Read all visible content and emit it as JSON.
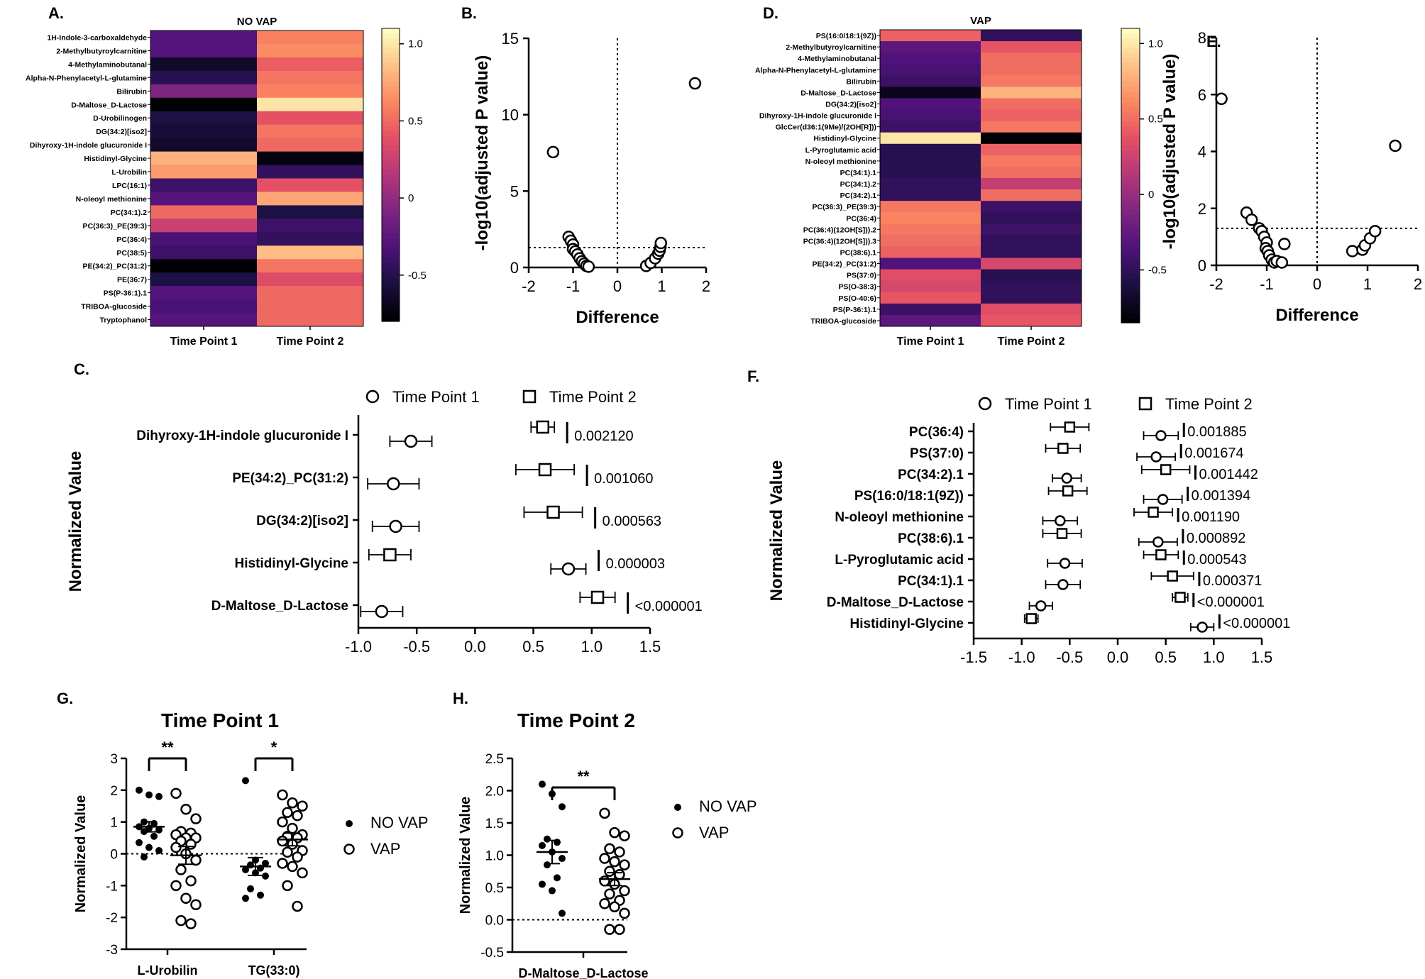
{
  "figure": {
    "panel_labels": [
      "A.",
      "B.",
      "C.",
      "D.",
      "E.",
      "F.",
      "G.",
      "H."
    ]
  },
  "chart_data": [
    {
      "id": "A",
      "type": "heatmap",
      "title": "NO VAP",
      "columns": [
        "Time Point 1",
        "Time Point 2"
      ],
      "rows": [
        "1H-Indole-3-carboxaldehyde",
        "2-Methylbutyroylcarnitine",
        "4-Methylaminobutanal",
        "Alpha-N-Phenylacetyl-L-glutamine",
        "Bilirubin",
        "D-Maltose_D-Lactose",
        "D-Urobilinogen",
        "DG(34:2)[iso2]",
        "Dihyroxy-1H-indole glucuronide I",
        "Histidinyl-Glycine",
        "L-Urobilin",
        "LPC(16:1)",
        "N-oleoyl methionine",
        "PC(34:1).2",
        "PC(36:3)_PE(39:3)",
        "PC(36:4)",
        "PC(38:5)",
        "PE(34:2)_PC(31:2)",
        "PE(36:7)",
        "PS(P-36:1).1",
        "TRIBOA-glucoside",
        "Tryptophanol"
      ],
      "values": [
        [
          -0.3,
          0.6
        ],
        [
          -0.3,
          0.65
        ],
        [
          -0.65,
          0.45
        ],
        [
          -0.5,
          0.55
        ],
        [
          -0.1,
          0.6
        ],
        [
          -0.85,
          1.0
        ],
        [
          -0.55,
          0.4
        ],
        [
          -0.6,
          0.55
        ],
        [
          -0.65,
          0.5
        ],
        [
          0.8,
          -0.75
        ],
        [
          0.7,
          -0.45
        ],
        [
          -0.4,
          0.4
        ],
        [
          -0.3,
          0.75
        ],
        [
          0.5,
          -0.55
        ],
        [
          0.25,
          -0.4
        ],
        [
          -0.35,
          -0.45
        ],
        [
          -0.4,
          0.85
        ],
        [
          -0.8,
          0.55
        ],
        [
          -0.55,
          0.35
        ],
        [
          -0.3,
          0.5
        ],
        [
          -0.35,
          0.5
        ],
        [
          -0.3,
          0.5
        ]
      ],
      "colorbar_ticks": [
        "1.0",
        "0.5",
        "0",
        "-0.5"
      ],
      "colorbar_range": [
        -0.8,
        1.1
      ]
    },
    {
      "id": "B",
      "type": "scatter",
      "xlabel": "Difference",
      "ylabel": "-log10(adjusted P value)",
      "xlim": [
        -2,
        2
      ],
      "ylim": [
        0,
        15
      ],
      "xticks": [
        "-2",
        "-1",
        "0",
        "1",
        "2"
      ],
      "yticks": [
        "0",
        "5",
        "10",
        "15"
      ],
      "threshold_y": 1.3,
      "points": [
        [
          1.75,
          12.05
        ],
        [
          -1.45,
          7.55
        ],
        [
          -1.1,
          2.0
        ],
        [
          -1.05,
          1.75
        ],
        [
          -1.0,
          1.5
        ],
        [
          -1.0,
          1.2
        ],
        [
          -0.95,
          1.05
        ],
        [
          -0.9,
          0.85
        ],
        [
          -0.85,
          0.6
        ],
        [
          -0.8,
          0.4
        ],
        [
          -0.75,
          0.25
        ],
        [
          -0.7,
          0.1
        ],
        [
          -0.65,
          0.05
        ],
        [
          0.65,
          0.1
        ],
        [
          0.75,
          0.3
        ],
        [
          0.85,
          0.6
        ],
        [
          0.92,
          0.9
        ],
        [
          0.95,
          1.1
        ],
        [
          0.97,
          1.35
        ],
        [
          0.98,
          1.6
        ]
      ]
    },
    {
      "id": "C",
      "type": "scatter",
      "subtype": "forest",
      "legend": [
        "Time Point 1",
        "Time Point 2"
      ],
      "ylabel": "Normalized Value",
      "xlim": [
        -1.0,
        1.5
      ],
      "xticks": [
        "-1.0",
        "-0.5",
        "0.0",
        "0.5",
        "1.0",
        "1.5"
      ],
      "categories": [
        "Dihyroxy-1H-indole glucuronide I",
        "PE(34:2)_PC(31:2)",
        "DG(34:2)[iso2]",
        "Histidinyl-Glycine",
        "D-Maltose_D-Lactose"
      ],
      "p_values": [
        "0.002120",
        "0.001060",
        "0.000563",
        "0.000003",
        "<0.000001"
      ],
      "tp1": [
        [
          -0.55,
          0.18
        ],
        [
          -0.7,
          0.22
        ],
        [
          -0.68,
          0.2
        ],
        [
          0.8,
          0.15
        ],
        [
          -0.8,
          0.18
        ]
      ],
      "tp2": [
        [
          0.58,
          0.1
        ],
        [
          0.6,
          0.25
        ],
        [
          0.67,
          0.25
        ],
        [
          -0.73,
          0.18
        ],
        [
          1.05,
          0.15
        ]
      ]
    },
    {
      "id": "D",
      "type": "heatmap",
      "title": "VAP",
      "columns": [
        "Time Point 1",
        "Time Point 2"
      ],
      "rows": [
        "PS(16:0/18:1(9Z))",
        "2-Methylbutyroylcarnitine",
        "4-Methylaminobutanal",
        "Alpha-N-Phenylacetyl-L-glutamine",
        "Bilirubin",
        "D-Maltose_D-Lactose",
        "DG(34:2)[iso2]",
        "Dihyroxy-1H-indole glucuronide I",
        "GlcCer(d36:1(9Me)/(2OH[R]))",
        "Histidinyl-Glycine",
        "L-Pyroglutamic acid",
        "N-oleoyl methionine",
        "PC(34:1).1",
        "PC(34:1).2",
        "PC(34:2).1",
        "PC(36:3)_PE(39:3)",
        "PC(36:4)",
        "PC(36:4)(12OH[S])).2",
        "PC(36:4)(12OH[S])).3",
        "PC(38:6).1",
        "PE(34:2)_PC(31:2)",
        "PS(37:0)",
        "PS(O-38:3)",
        "PS(O-40:6)",
        "PS(P-36:1).1",
        "TRIBOA-glucoside"
      ],
      "values": [
        [
          0.45,
          -0.5
        ],
        [
          -0.3,
          0.4
        ],
        [
          -0.35,
          0.5
        ],
        [
          -0.4,
          0.5
        ],
        [
          -0.45,
          0.55
        ],
        [
          -0.75,
          0.8
        ],
        [
          -0.35,
          0.5
        ],
        [
          -0.4,
          0.45
        ],
        [
          -0.45,
          0.55
        ],
        [
          1.0,
          -0.85
        ],
        [
          -0.55,
          0.45
        ],
        [
          -0.55,
          0.55
        ],
        [
          -0.55,
          0.5
        ],
        [
          -0.5,
          0.2
        ],
        [
          -0.5,
          0.5
        ],
        [
          0.55,
          -0.45
        ],
        [
          0.6,
          -0.5
        ],
        [
          0.55,
          -0.45
        ],
        [
          0.5,
          -0.5
        ],
        [
          0.45,
          -0.5
        ],
        [
          -0.35,
          0.3
        ],
        [
          0.35,
          -0.55
        ],
        [
          0.3,
          -0.5
        ],
        [
          0.4,
          -0.5
        ],
        [
          -0.45,
          0.35
        ],
        [
          -0.3,
          0.4
        ]
      ],
      "colorbar_ticks": [
        "1.0",
        "0.5",
        "0",
        "-0.5"
      ],
      "colorbar_range": [
        -0.85,
        1.1
      ]
    },
    {
      "id": "E",
      "type": "scatter",
      "xlabel": "Difference",
      "ylabel": "-log10(adjusted P value)",
      "xlim": [
        -2,
        2
      ],
      "ylim": [
        0,
        8
      ],
      "xticks": [
        "-2",
        "-1",
        "0",
        "1",
        "2"
      ],
      "yticks": [
        "0",
        "2",
        "4",
        "6",
        "8"
      ],
      "threshold_y": 1.3,
      "points": [
        [
          -1.9,
          5.85
        ],
        [
          1.55,
          4.2
        ],
        [
          -1.4,
          1.85
        ],
        [
          -1.3,
          1.6
        ],
        [
          -1.15,
          1.3
        ],
        [
          -1.1,
          1.2
        ],
        [
          -1.05,
          1.0
        ],
        [
          -1.0,
          0.8
        ],
        [
          -1.02,
          0.6
        ],
        [
          -0.98,
          0.5
        ],
        [
          -0.95,
          0.35
        ],
        [
          -0.9,
          0.2
        ],
        [
          -0.85,
          0.1
        ],
        [
          -0.8,
          0.15
        ],
        [
          -0.7,
          0.1
        ],
        [
          -0.65,
          0.75
        ],
        [
          0.7,
          0.5
        ],
        [
          0.9,
          0.55
        ],
        [
          0.95,
          0.7
        ],
        [
          1.05,
          0.95
        ],
        [
          1.15,
          1.2
        ]
      ]
    },
    {
      "id": "F",
      "type": "scatter",
      "subtype": "forest",
      "legend": [
        "Time Point 1",
        "Time Point 2"
      ],
      "ylabel": "Normalized Value",
      "xlim": [
        -1.5,
        1.5
      ],
      "xticks": [
        "-1.5",
        "-1.0",
        "-0.5",
        "0.0",
        "0.5",
        "1.0",
        "1.5"
      ],
      "categories": [
        "PC(36:4)",
        "PS(37:0)",
        "PC(34:2).1",
        "PS(16:0/18:1(9Z))",
        "N-oleoyl methionine",
        "PC(38:6).1",
        "L-Pyroglutamic acid",
        "PC(34:1).1",
        "D-Maltose_D-Lactose",
        "Histidinyl-Glycine"
      ],
      "p_values": [
        "0.001885",
        "0.001674",
        "0.001442",
        "0.001394",
        "0.001190",
        "0.000892",
        "0.000543",
        "0.000371",
        "<0.000001",
        "<0.000001"
      ],
      "tp1": [
        [
          0.45,
          0.18
        ],
        [
          0.4,
          0.2
        ],
        [
          -0.53,
          0.15
        ],
        [
          0.47,
          0.2
        ],
        [
          -0.6,
          0.18
        ],
        [
          0.42,
          0.2
        ],
        [
          -0.55,
          0.18
        ],
        [
          -0.57,
          0.18
        ],
        [
          -0.8,
          0.12
        ],
        [
          0.88,
          0.12
        ]
      ],
      "tp2": [
        [
          -0.5,
          0.2
        ],
        [
          -0.57,
          0.18
        ],
        [
          0.5,
          0.25
        ],
        [
          -0.52,
          0.2
        ],
        [
          0.37,
          0.2
        ],
        [
          -0.58,
          0.2
        ],
        [
          0.45,
          0.18
        ],
        [
          0.57,
          0.22
        ],
        [
          0.65,
          0.08
        ],
        [
          -0.9,
          0.07
        ]
      ]
    },
    {
      "id": "G",
      "type": "scatter",
      "subtype": "dot-plot",
      "title": "Time Point 1",
      "ylabel": "Normalized Value",
      "ylim": [
        -3,
        3
      ],
      "yticks": [
        "3",
        "2",
        "1",
        "0",
        "-1",
        "-2",
        "-3"
      ],
      "categories": [
        "L-Urobilin",
        "TG(33:0)"
      ],
      "legend": [
        "NO VAP",
        "VAP"
      ],
      "significance": [
        "**",
        "*"
      ],
      "series": [
        {
          "name": "NO VAP",
          "group": 0,
          "mean": 0.85,
          "sem": 0.16,
          "values": [
            2.0,
            1.85,
            1.8,
            1.0,
            0.95,
            0.85,
            0.8,
            0.75,
            0.7,
            0.55,
            0.35,
            0.2,
            0.1,
            -0.1
          ]
        },
        {
          "name": "VAP",
          "group": 0,
          "mean": -0.05,
          "sem": 0.28,
          "values": [
            1.9,
            1.4,
            1.1,
            0.7,
            0.65,
            0.6,
            0.5,
            0.5,
            0.4,
            0.3,
            0.2,
            0.0,
            -0.2,
            -0.5,
            -0.85,
            -1.0,
            -1.4,
            -1.6,
            -2.1,
            -2.2
          ]
        },
        {
          "name": "NO VAP",
          "group": 1,
          "mean": -0.4,
          "sem": 0.28,
          "values": [
            2.3,
            -0.2,
            -0.3,
            -0.35,
            -0.45,
            -0.5,
            -0.6,
            -0.7,
            -1.1,
            -1.3,
            -1.4
          ]
        },
        {
          "name": "VAP",
          "group": 1,
          "mean": 0.45,
          "sem": 0.2,
          "values": [
            1.85,
            1.6,
            1.5,
            1.3,
            1.2,
            1.0,
            0.8,
            0.6,
            0.55,
            0.5,
            0.4,
            0.3,
            0.1,
            0.05,
            -0.1,
            -0.3,
            -0.4,
            -0.6,
            -1.0,
            -1.65
          ]
        }
      ]
    },
    {
      "id": "H",
      "type": "scatter",
      "subtype": "dot-plot",
      "title": "Time Point 2",
      "ylabel": "Normalized Value",
      "ylim": [
        -0.5,
        2.5
      ],
      "yticks": [
        "2.5",
        "2.0",
        "1.5",
        "1.0",
        "0.5",
        "0.0",
        "-0.5"
      ],
      "categories": [
        "D-Maltose_D-Lactose"
      ],
      "legend": [
        "NO VAP",
        "VAP"
      ],
      "significance": [
        "**"
      ],
      "series": [
        {
          "name": "NO VAP",
          "group": 0,
          "mean": 1.05,
          "sem": 0.18,
          "values": [
            2.1,
            1.95,
            1.75,
            1.25,
            1.2,
            1.15,
            1.05,
            0.95,
            0.85,
            0.65,
            0.55,
            0.45,
            0.1
          ]
        },
        {
          "name": "VAP",
          "group": 0,
          "mean": 0.63,
          "sem": 0.1,
          "values": [
            1.65,
            1.35,
            1.3,
            1.1,
            1.05,
            0.95,
            0.9,
            0.85,
            0.75,
            0.7,
            0.6,
            0.55,
            0.45,
            0.4,
            0.3,
            0.25,
            0.2,
            0.1,
            -0.15,
            -0.15
          ]
        }
      ]
    }
  ]
}
